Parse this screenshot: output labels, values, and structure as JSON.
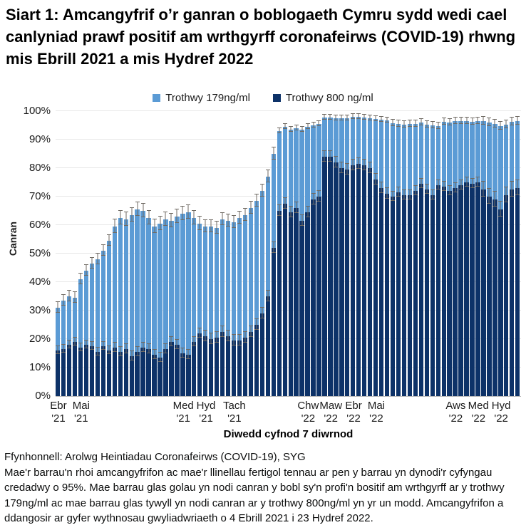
{
  "title": "Siart 1: Amcangyfrif o’r ganran o boblogaeth Cymru sydd wedi cael canlyniad prawf positif am wrthgyrff coronafeirws (COVID-19) rhwng mis Ebrill 2021 a mis Hydref 2022",
  "legend": {
    "items": [
      {
        "label": "Trothwy 179ng/ml",
        "color": "#5b9bd5"
      },
      {
        "label": "Trothwy 800 ng/ml",
        "color": "#0d3268"
      }
    ]
  },
  "x_axis_title": "Diwedd cyfnod 7 diwrnod",
  "y_axis_title": "Canran",
  "footer": {
    "source": "Ffynhonnell: Arolwg Heintiadau Coronafeirws (COVID-19), SYG",
    "note": "Mae'r barrau'n rhoi amcangyfrifon ac mae'r llinellau fertigol tennau ar pen y barrau yn dynodi'r cyfyngau credadwy o 95%. Mae barrau glas golau yn nodi canran y bobl sy'n profi'n bositif am wrthgyrff ar y trothwy 179ng/ml ac mae barrau glas tywyll yn nodi canran ar y trothwy 800ng/ml yn yr un modd. Amcangyfrifon a ddangosir ar gyfer wythnosau gwyliadwriaeth o 4 Ebrill 2021 i 23 Hydref 2022."
  },
  "chart_data": {
    "type": "bar",
    "stacked": true,
    "title": "Siart 1: Amcangyfrif o’r ganran o boblogaeth Cymru sydd wedi cael canlyniad prawf positif am wrthgyrff coronafeirws (COVID-19) rhwng mis Ebrill 2021 a mis Hydref 2022",
    "xlabel": "Diwedd cyfnod 7 diwrnod",
    "ylabel": "Canran",
    "ylim": [
      0,
      100
    ],
    "grid": true,
    "legend_position": "top-center",
    "x_start_week_ending": "4 Ebrill 2021",
    "x_end_week_ending": "23 Hydref 2022",
    "x_interval": "weekly (82 bars)",
    "stacking_note": "values are total bar heights in %; the 800 ng/ml series is the lower dark segment, the 179ng/ml light segment fills up to its total; thin vertical lines are 95% credible intervals",
    "y_ticks": [
      "0%",
      "10%",
      "20%",
      "30%",
      "40%",
      "50%",
      "60%",
      "70%",
      "80%",
      "90%",
      "100%"
    ],
    "series": [
      {
        "name": "Trothwy 179ng/ml",
        "color": "#5b9bd5",
        "values": [
          31,
          33.5,
          35,
          34.5,
          41,
          44,
          46.5,
          48,
          51,
          54.5,
          59.5,
          62.5,
          62,
          63.5,
          65.5,
          65,
          62.5,
          59.5,
          60.5,
          62,
          61.5,
          63,
          64,
          64.5,
          62.5,
          60.5,
          59.5,
          59.5,
          59,
          62,
          61.5,
          61,
          62.5,
          63.5,
          66,
          68.5,
          72,
          77,
          85,
          93,
          94.5,
          93.5,
          94,
          93.5,
          94.5,
          95,
          95.5,
          97.8,
          97.8,
          97.5,
          97.5,
          97.5,
          98,
          98,
          97.8,
          97.5,
          97.3,
          97,
          96.8,
          95.8,
          95.5,
          95.3,
          95.5,
          95.5,
          96,
          95.3,
          95,
          94.8,
          96.2,
          96,
          96.5,
          96.5,
          96.5,
          96.3,
          96.5,
          96.5,
          96,
          95.5,
          94.8,
          95.2,
          96.3,
          96.5
        ]
      },
      {
        "name": "Trothwy 800 ng/ml",
        "color": "#0d3268",
        "values": [
          16,
          16.5,
          18,
          19,
          17,
          18,
          17.5,
          15.5,
          17.5,
          16,
          17,
          15.5,
          16.5,
          14,
          15.5,
          17,
          16.5,
          14.5,
          13.5,
          16.5,
          19,
          18,
          15,
          14.5,
          19,
          22,
          21,
          20,
          20.5,
          22.5,
          21,
          19.5,
          19.5,
          20.5,
          22.5,
          25,
          29,
          35,
          52,
          65,
          67.5,
          64.5,
          66,
          61.5,
          64.5,
          69,
          70,
          84,
          84,
          82,
          80,
          79.5,
          81,
          81.5,
          81,
          80,
          76,
          73,
          71,
          70,
          71.5,
          70.5,
          70.5,
          72,
          74.5,
          72.5,
          70.5,
          74,
          73.5,
          72,
          73,
          74,
          75,
          74.5,
          75,
          72.5,
          70,
          69,
          65.5,
          70.5,
          72.5,
          73
        ]
      }
    ],
    "ci_179": [
      1.8,
      1.8,
      1.8,
      1.8,
      1.8,
      1.8,
      1.8,
      1.8,
      1.8,
      1.8,
      2.2,
      2.2,
      2.2,
      2.2,
      2.2,
      2.2,
      2.2,
      2.2,
      2.2,
      2.2,
      2.2,
      2.2,
      2.2,
      2.2,
      2.2,
      2.2,
      2,
      2,
      2,
      2,
      2,
      2,
      2,
      2,
      2,
      2,
      2,
      2,
      2,
      0.8,
      0.8,
      0.8,
      0.8,
      0.8,
      0.8,
      0.8,
      0.8,
      0.8,
      0.8,
      0.8,
      0.8,
      0.8,
      0.8,
      0.8,
      0.8,
      0.8,
      0.8,
      0.8,
      0.8,
      1,
      1,
      1,
      1,
      1,
      1,
      1,
      1,
      1,
      1,
      1,
      1,
      1,
      1,
      1,
      1,
      1.3,
      1.3,
      1.3,
      1.3,
      1.3,
      1.3,
      1.3
    ],
    "ci_800": [
      1.3,
      1.3,
      1.3,
      1.3,
      1.3,
      1.3,
      1.3,
      1.3,
      1.3,
      1.3,
      1.6,
      1.6,
      1.6,
      1.6,
      1.6,
      1.6,
      1.6,
      1.6,
      1.6,
      1.6,
      1.6,
      1.6,
      1.6,
      1.6,
      1.6,
      1.6,
      1.7,
      1.7,
      1.7,
      1.7,
      1.7,
      1.7,
      1.7,
      1.7,
      1.7,
      1.7,
      1.7,
      1.7,
      1.7,
      1.8,
      1.8,
      1.8,
      1.8,
      1.8,
      1.8,
      1.8,
      1.8,
      1.8,
      1.8,
      1.8,
      1.8,
      1.8,
      1.8,
      1.8,
      1.8,
      1.8,
      1.8,
      1.8,
      1.8,
      1.6,
      1.6,
      1.6,
      1.6,
      1.6,
      1.6,
      1.6,
      1.6,
      1.6,
      1.6,
      1.6,
      1.6,
      1.6,
      1.6,
      1.6,
      1.6,
      2.4,
      2.4,
      2.4,
      2.4,
      2.4,
      2.4,
      2.4
    ],
    "month_ticks": [
      {
        "line1": "Ebr",
        "line2": "'21",
        "bar_index": 0
      },
      {
        "line1": "Mai",
        "line2": "'21",
        "bar_index": 4
      },
      {
        "line1": "Med",
        "line2": "'21",
        "bar_index": 22
      },
      {
        "line1": "Hyd",
        "line2": "'21",
        "bar_index": 26
      },
      {
        "line1": "Tach",
        "line2": "'21",
        "bar_index": 31
      },
      {
        "line1": "Chw",
        "line2": "'22",
        "bar_index": 44
      },
      {
        "line1": "Maw",
        "line2": "'22",
        "bar_index": 48
      },
      {
        "line1": "Ebr",
        "line2": "'22",
        "bar_index": 52
      },
      {
        "line1": "Mai",
        "line2": "'22",
        "bar_index": 56
      },
      {
        "line1": "Aws",
        "line2": "'22",
        "bar_index": 70
      },
      {
        "line1": "Med",
        "line2": "'22",
        "bar_index": 74
      },
      {
        "line1": "Hyd",
        "line2": "'22",
        "bar_index": 78
      }
    ]
  }
}
